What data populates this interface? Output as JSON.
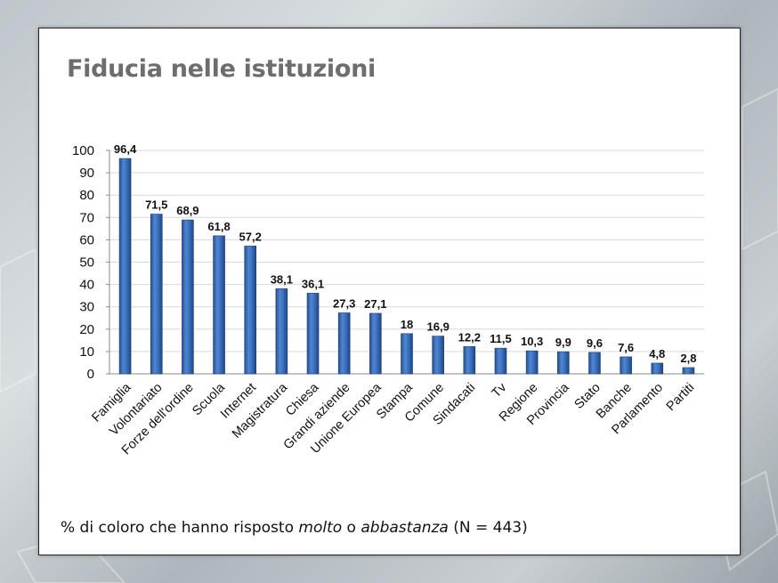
{
  "title": "Fiducia nelle istituzioni",
  "caption": {
    "prefix": "% di coloro che hanno risposto ",
    "em1": "molto",
    "mid": " o ",
    "em2": "abbastanza",
    "suffix": " (N = 443)"
  },
  "chart_data": {
    "type": "bar",
    "title": "Fiducia nelle istituzioni",
    "xlabel": "",
    "ylabel": "",
    "ylim": [
      0,
      100
    ],
    "yticks": [
      0,
      10,
      20,
      30,
      40,
      50,
      60,
      70,
      80,
      90,
      100
    ],
    "grid": true,
    "legend": "none",
    "bar_color": "#3a6fbd",
    "categories": [
      "Famiglia",
      "Volontariato",
      "Forze dell'ordine",
      "Scuola",
      "Internet",
      "Magistratura",
      "Chiesa",
      "Grandi aziende",
      "Unione Europea",
      "Stampa",
      "Comune",
      "Sindacati",
      "Tv",
      "Regione",
      "Provincia",
      "Stato",
      "Banche",
      "Parlamento",
      "Partiti"
    ],
    "values": [
      96.4,
      71.5,
      68.9,
      61.8,
      57.2,
      38.1,
      36.1,
      27.3,
      27.1,
      18,
      16.9,
      12.2,
      11.5,
      10.3,
      9.9,
      9.6,
      7.6,
      4.8,
      2.8
    ],
    "value_labels": [
      "96,4",
      "71,5",
      "68,9",
      "61,8",
      "57,2",
      "38,1",
      "36,1",
      "27,3",
      "27,1",
      "18",
      "16,9",
      "12,2",
      "11,5",
      "10,3",
      "9,9",
      "9,6",
      "7,6",
      "4,8",
      "2,8"
    ]
  }
}
